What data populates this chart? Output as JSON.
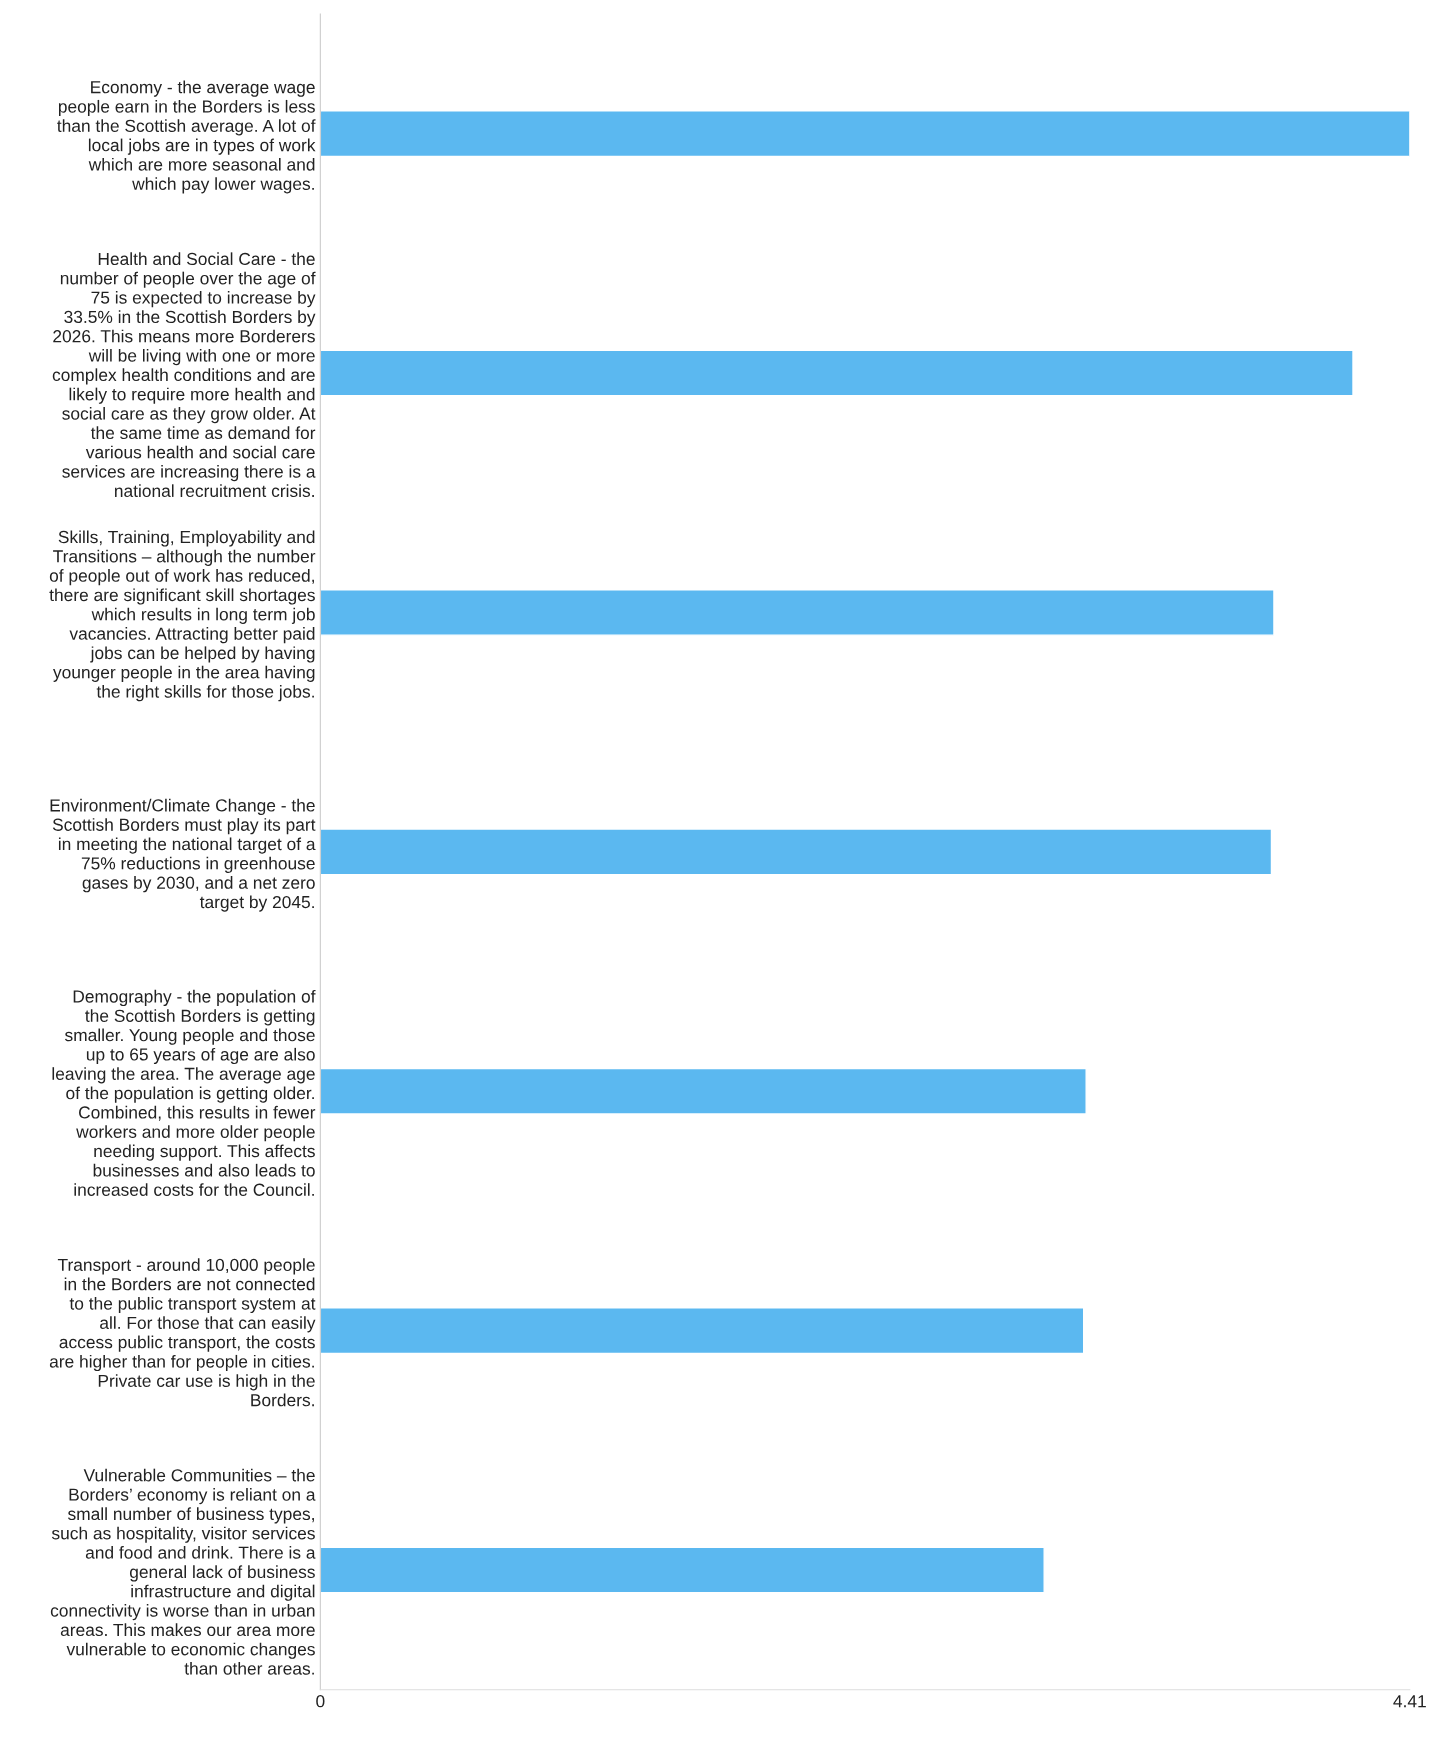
{
  "chart_data": {
    "type": "bar",
    "orientation": "horizontal",
    "categories": [
      "Economy - the average wage\npeople earn in the Borders is less\nthan the Scottish average. A lot of\nlocal jobs are in types of work\nwhich are more seasonal and\nwhich pay lower wages.",
      "Health and Social Care - the\nnumber of people over the age of\n75 is expected to increase by\n33.5% in the Scottish Borders by\n2026. This means more Borderers\nwill be living with one or more\ncomplex health conditions and are\nlikely to require more health and\nsocial care as they grow older. At\nthe same time as demand for\nvarious health and social care\nservices are increasing there is a\nnational recruitment crisis.",
      "Skills, Training, Employability and\nTransitions – although the number\nof people out of work has reduced,\nthere are significant skill shortages\nwhich results in long term job\nvacancies. Attracting better paid\njobs can be helped by having\nyounger people in the area having\nthe right skills for those jobs.",
      "Environment/Climate Change - the\nScottish Borders must play its part\nin meeting the national target of a\n75% reductions in greenhouse\ngases by 2030, and a net zero\ntarget by 2045.",
      "Demography - the population of\nthe Scottish Borders is getting\nsmaller. Young people and those\nup to 65 years of age are also\nleaving the area. The average age\nof the population is getting older.\nCombined, this results in fewer\nworkers and more older people\nneeding support. This affects\nbusinesses and also leads to\nincreased costs for the Council.",
      "Transport - around 10,000 people\nin the Borders are not connected\nto the public transport system at\nall. For those that can easily\naccess public transport, the costs\nare higher than for people in cities.\nPrivate car use is high in the\nBorders.",
      "Vulnerable Communities – the\nBorders’ economy is reliant on a\nsmall number of business types,\nsuch as hospitality, visitor services\nand food and drink. There is a\ngeneral lack of business\ninfrastructure and digital\nconnectivity is worse than in urban\nareas. This makes our area more\nvulnerable to economic changes\nthan other areas."
    ],
    "values": [
      4.41,
      4.18,
      3.86,
      3.85,
      3.1,
      3.09,
      2.93
    ],
    "color": "#5bb8f0",
    "xlim": [
      0,
      4.41
    ],
    "xticks": [
      0,
      4.41
    ],
    "grid": false,
    "legend": false
  }
}
